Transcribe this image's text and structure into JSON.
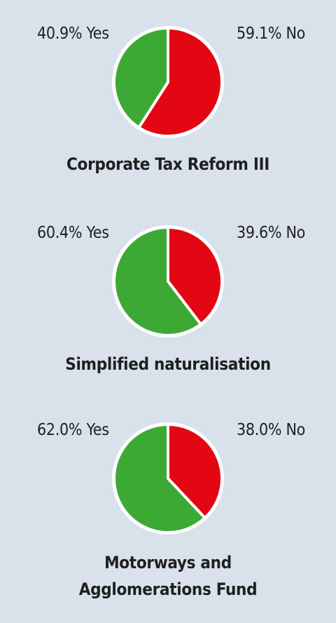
{
  "colors": {
    "background": "#d9e1ea",
    "yes": "#3da935",
    "no": "#e30613",
    "outline": "#ffffff"
  },
  "chart_data": [
    {
      "type": "pie",
      "title": "Corporate Tax Reform III",
      "slices": [
        {
          "label": "Yes",
          "value": 40.9,
          "text": "40.9% Yes"
        },
        {
          "label": "No",
          "value": 59.1,
          "text": "59.1% No"
        }
      ]
    },
    {
      "type": "pie",
      "title": "Simplified naturalisation",
      "slices": [
        {
          "label": "Yes",
          "value": 60.4,
          "text": "60.4% Yes"
        },
        {
          "label": "No",
          "value": 39.6,
          "text": "39.6% No"
        }
      ]
    },
    {
      "type": "pie",
      "title_lines": [
        "Motorways and",
        "Agglomerations Fund"
      ],
      "slices": [
        {
          "label": "Yes",
          "value": 62.0,
          "text": "62.0% Yes"
        },
        {
          "label": "No",
          "value": 38.0,
          "text": "38.0% No"
        }
      ]
    }
  ]
}
